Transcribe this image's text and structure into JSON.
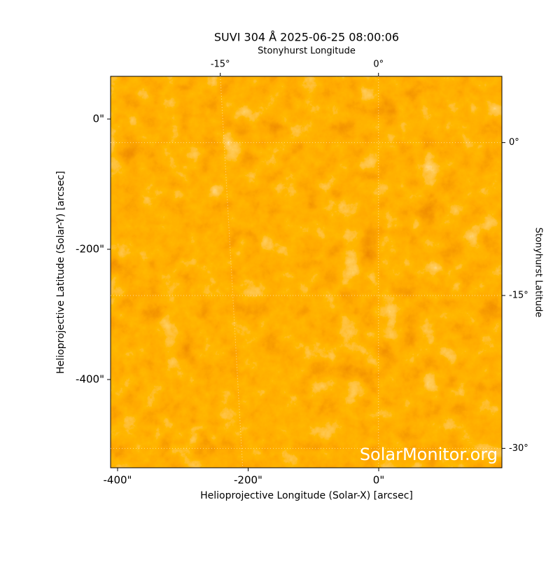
{
  "chart_data": {
    "type": "image",
    "title": "SUVI 304 Å 2025-06-25 08:00:06",
    "xlabel": "Helioprojective Longitude (Solar-X) [arcsec]",
    "ylabel": "Helioprojective Latitude (Solar-Y) [arcsec]",
    "x2label": "Stonyhurst Longitude",
    "y2label": "Stonyhurst Latitude",
    "watermark": "SolarMonitor.org",
    "xlim": [
      -410.7,
      188.7
    ],
    "xticks": [
      {
        "value": -400,
        "label": "-400\""
      },
      {
        "value": -200,
        "label": "-200\""
      },
      {
        "value": 0,
        "label": "0\""
      }
    ],
    "ylim": [
      -535.5,
      65.6
    ],
    "yticks": [
      {
        "value": 0,
        "label": "0\""
      },
      {
        "value": -200,
        "label": "-200\""
      },
      {
        "value": -400,
        "label": "-400\""
      }
    ],
    "x2lim": [
      -25.4,
      11.7
    ],
    "x2ticks": [
      {
        "value": -15,
        "label": "-15°"
      },
      {
        "value": 0,
        "label": "0°"
      }
    ],
    "y2lim": [
      -31.9,
      6.5
    ],
    "y2ticks": [
      {
        "value": 0,
        "label": "0°"
      },
      {
        "value": -15,
        "label": "-15°"
      },
      {
        "value": -30,
        "label": "-30°"
      }
    ]
  }
}
